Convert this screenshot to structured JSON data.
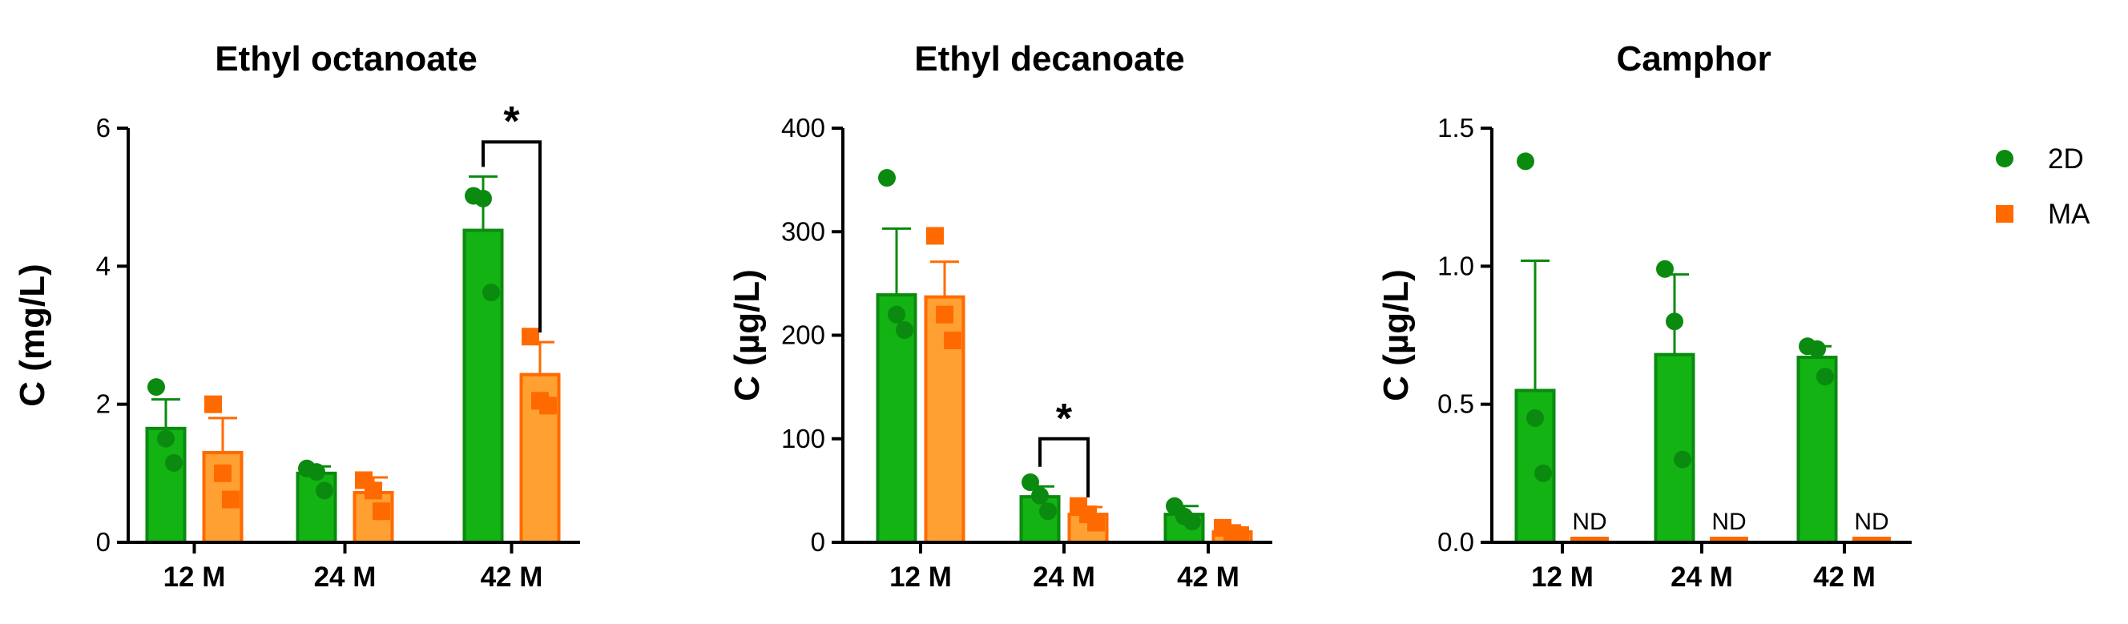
{
  "chart_data": [
    {
      "type": "bar",
      "title": "Ethyl octanoate",
      "ylabel": "C (mg/L)",
      "categories": [
        "12 M",
        "24 M",
        "42 M"
      ],
      "ylim": [
        0,
        6
      ],
      "yticks": [
        0,
        2,
        4,
        6
      ],
      "series": [
        {
          "name": "2D",
          "values": [
            1.65,
            1.0,
            4.52
          ],
          "errors": [
            0.42,
            0.1,
            0.78
          ],
          "points": [
            [
              2.25,
              1.5,
              1.15
            ],
            [
              1.07,
              1.02,
              0.75
            ],
            [
              5.02,
              4.98,
              3.62
            ]
          ]
        },
        {
          "name": "MA",
          "values": [
            1.3,
            0.72,
            2.43
          ],
          "errors": [
            0.5,
            0.22,
            0.47
          ],
          "points": [
            [
              2.0,
              1.0,
              0.62
            ],
            [
              0.9,
              0.75,
              0.45
            ],
            [
              2.98,
              2.05,
              1.98
            ]
          ]
        }
      ],
      "significance": [
        {
          "category": "42 M",
          "label": "*",
          "y": 5.8
        }
      ]
    },
    {
      "type": "bar",
      "title": "Ethyl decanoate",
      "ylabel": "C (µg/L)",
      "categories": [
        "12 M",
        "24 M",
        "42 M"
      ],
      "ylim": [
        0,
        400
      ],
      "yticks": [
        0,
        100,
        200,
        300,
        400
      ],
      "series": [
        {
          "name": "2D",
          "values": [
            239,
            44,
            27
          ],
          "errors": [
            64,
            10,
            8
          ],
          "points": [
            [
              352,
              220,
              205
            ],
            [
              58,
              45,
              30
            ],
            [
              35,
              25,
              20
            ]
          ]
        },
        {
          "name": "MA",
          "values": [
            237,
            27,
            10
          ],
          "errors": [
            34,
            7,
            4
          ],
          "points": [
            [
              296,
              220,
              195
            ],
            [
              35,
              27,
              19
            ],
            [
              14,
              9,
              7
            ]
          ]
        }
      ],
      "significance": [
        {
          "category": "24 M",
          "label": "*",
          "y": 100
        }
      ]
    },
    {
      "type": "bar",
      "title": "Camphor",
      "ylabel": "C (µg/L)",
      "categories": [
        "12 M",
        "24 M",
        "42 M"
      ],
      "ylim": [
        0,
        1.5
      ],
      "yticks": [
        "0.0",
        "0.5",
        "1.0",
        "1.5"
      ],
      "series": [
        {
          "name": "2D",
          "values": [
            0.55,
            0.68,
            0.67
          ],
          "errors": [
            0.47,
            0.29,
            0.04
          ],
          "points": [
            [
              1.38,
              0.45,
              0.25
            ],
            [
              0.99,
              0.8,
              0.3
            ],
            [
              0.71,
              0.7,
              0.6
            ]
          ]
        },
        {
          "name": "MA",
          "values": [
            0.0,
            0.0,
            0.0
          ],
          "errors": [
            0,
            0,
            0
          ],
          "points": [
            [],
            [],
            []
          ],
          "notes": [
            "ND",
            "ND",
            "ND"
          ]
        }
      ]
    }
  ],
  "legend": {
    "placement": "right",
    "items": [
      {
        "name": "2D",
        "marker": "circle",
        "color": "#0b8a10"
      },
      {
        "name": "MA",
        "marker": "square",
        "color": "#ff6a00"
      }
    ]
  },
  "colors": {
    "2D_bar": "#13b313",
    "2D_edge": "#0b8a10",
    "MA_bar": "#ffa033",
    "MA_edge": "#ff6a00"
  }
}
